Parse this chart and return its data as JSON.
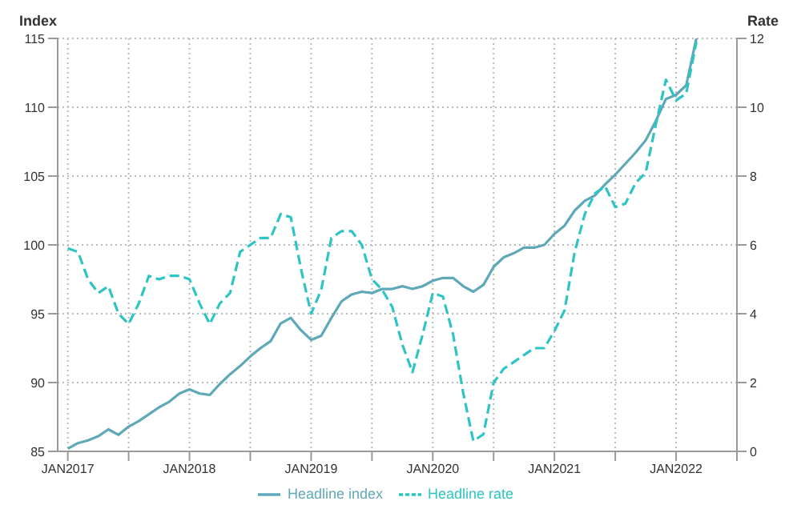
{
  "chart_data": {
    "type": "line",
    "ylabel": "Index",
    "y2label": "Rate",
    "x": [
      "2017-01",
      "2017-02",
      "2017-03",
      "2017-04",
      "2017-05",
      "2017-06",
      "2017-07",
      "2017-08",
      "2017-09",
      "2017-10",
      "2017-11",
      "2017-12",
      "2018-01",
      "2018-02",
      "2018-03",
      "2018-04",
      "2018-05",
      "2018-06",
      "2018-07",
      "2018-08",
      "2018-09",
      "2018-10",
      "2018-11",
      "2018-12",
      "2019-01",
      "2019-02",
      "2019-03",
      "2019-04",
      "2019-05",
      "2019-06",
      "2019-07",
      "2019-08",
      "2019-09",
      "2019-10",
      "2019-11",
      "2019-12",
      "2020-01",
      "2020-02",
      "2020-03",
      "2020-04",
      "2020-05",
      "2020-06",
      "2020-07",
      "2020-08",
      "2020-09",
      "2020-10",
      "2020-11",
      "2020-12",
      "2021-01",
      "2021-02",
      "2021-03",
      "2021-04",
      "2021-05",
      "2021-06",
      "2021-07",
      "2021-08",
      "2021-09",
      "2021-10",
      "2021-11",
      "2021-12",
      "2022-01",
      "2022-02",
      "2022-03"
    ],
    "series": [
      {
        "name": "Headline index",
        "color": "#5fa8b8",
        "line_style": "solid",
        "values": [
          85.2,
          85.6,
          85.8,
          86.1,
          86.6,
          86.2,
          86.8,
          87.2,
          87.7,
          88.2,
          88.6,
          89.2,
          89.5,
          89.2,
          89.1,
          89.9,
          90.6,
          91.2,
          91.9,
          92.5,
          93.0,
          94.3,
          94.7,
          93.8,
          93.1,
          93.4,
          94.7,
          95.9,
          96.4,
          96.6,
          96.5,
          96.8,
          96.8,
          97.0,
          96.8,
          97.0,
          97.4,
          97.6,
          97.6,
          97.0,
          96.6,
          97.1,
          98.4,
          99.1,
          99.4,
          99.8,
          99.8,
          100.0,
          100.8,
          101.4,
          102.5,
          103.2,
          103.6,
          104.4,
          105.1,
          105.9,
          106.7,
          107.6,
          109.0,
          110.6,
          110.9,
          111.6,
          115.0
        ]
      },
      {
        "name": "Headline rate",
        "color": "#2ec4c4",
        "line_style": "dashed",
        "axis": "y2",
        "values": [
          5.9,
          5.8,
          5.0,
          4.6,
          4.8,
          4.0,
          3.7,
          4.3,
          5.1,
          5.0,
          5.1,
          5.1,
          5.0,
          4.3,
          3.7,
          4.3,
          4.6,
          5.8,
          6.0,
          6.2,
          6.2,
          6.9,
          6.8,
          5.3,
          4.0,
          4.7,
          6.2,
          6.4,
          6.4,
          6.0,
          5.0,
          4.7,
          4.2,
          3.1,
          2.3,
          3.4,
          4.6,
          4.5,
          3.4,
          1.7,
          0.3,
          0.5,
          2.0,
          2.4,
          2.6,
          2.8,
          3.0,
          3.0,
          3.5,
          4.1,
          5.8,
          6.9,
          7.5,
          7.7,
          7.1,
          7.2,
          7.8,
          8.1,
          9.5,
          10.8,
          10.2,
          10.4,
          11.9
        ]
      }
    ],
    "xlim": [
      "2016-12",
      "2022-07"
    ],
    "xticks": [
      {
        "value": "2017-01",
        "label": "JAN2017"
      },
      {
        "value": "2017-07",
        "label": null
      },
      {
        "value": "2018-01",
        "label": "JAN2018"
      },
      {
        "value": "2018-07",
        "label": null
      },
      {
        "value": "2019-01",
        "label": "JAN2019"
      },
      {
        "value": "2019-07",
        "label": null
      },
      {
        "value": "2020-01",
        "label": "JAN2020"
      },
      {
        "value": "2020-07",
        "label": null
      },
      {
        "value": "2021-01",
        "label": "JAN2021"
      },
      {
        "value": "2021-07",
        "label": null
      },
      {
        "value": "2022-01",
        "label": "JAN2022"
      },
      {
        "value": "2022-07",
        "label": null
      }
    ],
    "ylim": [
      85,
      115
    ],
    "yticks": [
      85,
      90,
      95,
      100,
      105,
      110,
      115
    ],
    "y2lim": [
      0,
      12
    ],
    "y2ticks": [
      0,
      2,
      4,
      6,
      8,
      10,
      12
    ],
    "grid": true,
    "legend": "bottom",
    "marker": "none"
  }
}
